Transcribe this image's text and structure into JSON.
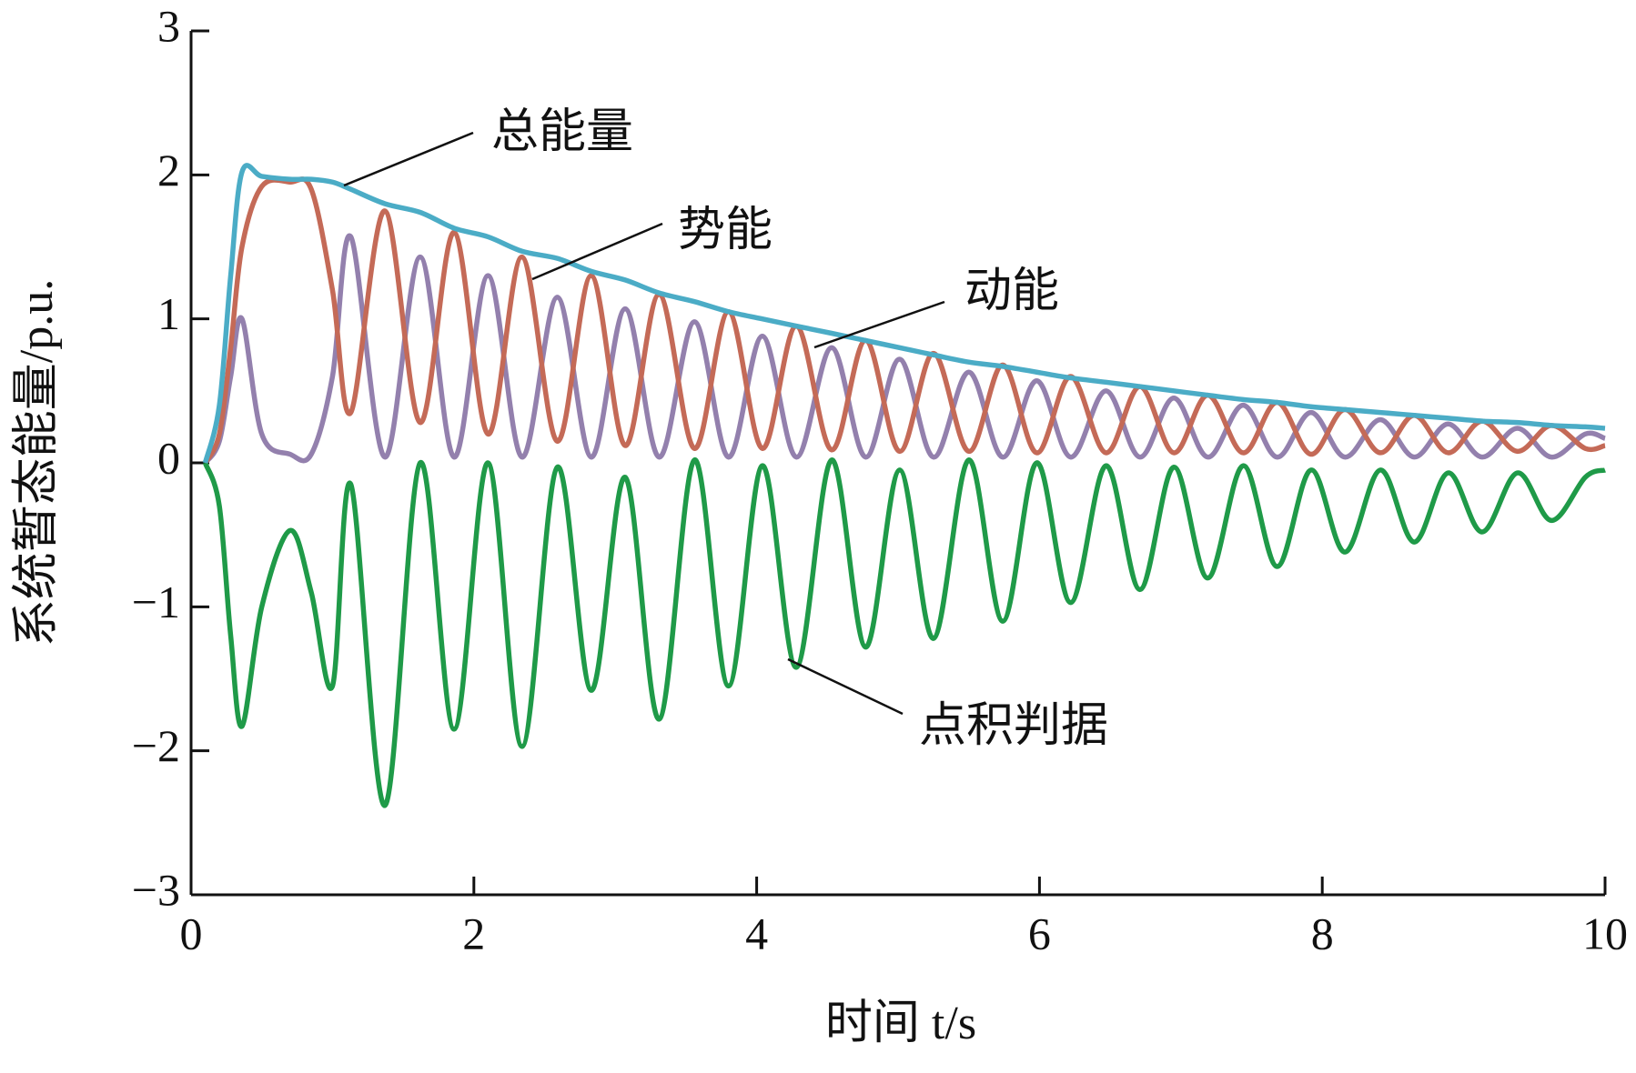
{
  "chart_data": {
    "type": "line",
    "xlabel": "时间 t/s",
    "ylabel": "系统暂态能量/p.u.",
    "x": [
      0.1,
      0.2,
      0.28,
      0.36,
      0.5,
      0.7,
      0.85,
      1.0,
      1.13,
      1.37,
      1.62,
      1.86,
      2.1,
      2.34,
      2.59,
      2.83,
      3.07,
      3.31,
      3.56,
      3.8,
      4.04,
      4.28,
      4.53,
      4.77,
      5.01,
      5.25,
      5.5,
      5.74,
      5.98,
      6.22,
      6.47,
      6.71,
      6.95,
      7.19,
      7.44,
      7.68,
      7.92,
      8.16,
      8.41,
      8.65,
      8.89,
      9.13,
      9.38,
      9.62,
      9.86,
      10.0
    ],
    "series": [
      {
        "name": "总能量",
        "color": "#4bacc6",
        "values": [
          0,
          0.4,
          1.3,
          2.02,
          1.99,
          1.97,
          1.97,
          1.95,
          1.9,
          1.8,
          1.74,
          1.63,
          1.57,
          1.47,
          1.42,
          1.33,
          1.27,
          1.18,
          1.12,
          1.05,
          1.0,
          0.95,
          0.9,
          0.85,
          0.8,
          0.75,
          0.7,
          0.67,
          0.63,
          0.59,
          0.56,
          0.53,
          0.5,
          0.47,
          0.44,
          0.42,
          0.39,
          0.37,
          0.35,
          0.33,
          0.31,
          0.29,
          0.28,
          0.26,
          0.25,
          0.24
        ]
      },
      {
        "name": "势能",
        "color": "#c46a57",
        "values": [
          0,
          0.2,
          0.8,
          1.5,
          1.92,
          1.95,
          1.9,
          1.2,
          0.35,
          1.75,
          0.28,
          1.6,
          0.2,
          1.43,
          0.15,
          1.3,
          0.12,
          1.17,
          0.1,
          1.05,
          0.1,
          0.95,
          0.09,
          0.85,
          0.08,
          0.76,
          0.08,
          0.68,
          0.07,
          0.6,
          0.07,
          0.53,
          0.07,
          0.47,
          0.07,
          0.42,
          0.06,
          0.37,
          0.07,
          0.33,
          0.07,
          0.29,
          0.08,
          0.26,
          0.1,
          0.12
        ]
      },
      {
        "name": "动能",
        "color": "#9380ad",
        "values": [
          0,
          0.15,
          0.6,
          1.0,
          0.2,
          0.06,
          0.06,
          0.6,
          1.57,
          0.04,
          1.43,
          0.04,
          1.3,
          0.04,
          1.15,
          0.04,
          1.07,
          0.04,
          0.98,
          0.04,
          0.88,
          0.04,
          0.8,
          0.04,
          0.72,
          0.04,
          0.63,
          0.04,
          0.57,
          0.04,
          0.5,
          0.04,
          0.45,
          0.04,
          0.4,
          0.04,
          0.35,
          0.04,
          0.3,
          0.04,
          0.27,
          0.04,
          0.24,
          0.04,
          0.2,
          0.17
        ]
      },
      {
        "name": "点积判据",
        "color": "#1f9a48",
        "values": [
          0,
          -0.3,
          -1.2,
          -1.83,
          -1.0,
          -0.47,
          -0.9,
          -1.55,
          -0.15,
          -2.38,
          0,
          -1.85,
          0,
          -1.97,
          -0.03,
          -1.58,
          -0.1,
          -1.78,
          0.02,
          -1.55,
          -0.02,
          -1.42,
          0.02,
          -1.28,
          -0.05,
          -1.22,
          0.02,
          -1.1,
          0,
          -0.97,
          -0.02,
          -0.88,
          -0.03,
          -0.8,
          -0.02,
          -0.72,
          -0.05,
          -0.62,
          -0.05,
          -0.55,
          -0.07,
          -0.48,
          -0.07,
          -0.4,
          -0.1,
          -0.05
        ]
      }
    ],
    "xlim": [
      0,
      10
    ],
    "xticks": [
      0,
      2,
      4,
      6,
      8,
      10
    ],
    "ylim": [
      -3,
      3
    ],
    "yticks": [
      {
        "value": -3,
        "label": "−3"
      },
      {
        "value": -2,
        "label": "−2"
      },
      {
        "value": -1,
        "label": "−1"
      },
      0,
      1,
      2,
      3
    ],
    "grid": false
  }
}
